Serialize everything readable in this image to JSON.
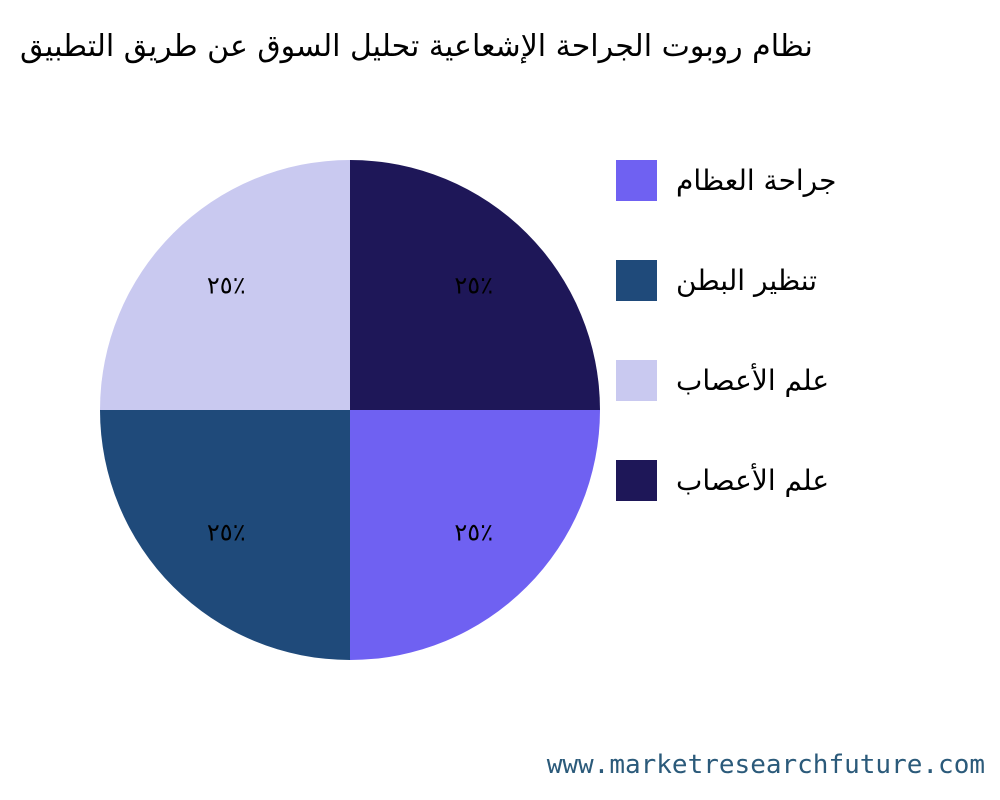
{
  "chart_data": {
    "type": "pie",
    "title": "نظام روبوت الجراحة الإشعاعية تحليل السوق عن طريق التطبيق",
    "categories": [
      "جراحة العظام",
      "تنظير البطن",
      "علم الأعصاب",
      "علم الأعصاب"
    ],
    "values": [
      25,
      25,
      25,
      25
    ],
    "value_labels": [
      "٢٥٪",
      "٢٥٪",
      "٢٥٪",
      "٢٥٪"
    ],
    "colors": [
      "#6f61f2",
      "#1f4a7a",
      "#c9c9f0",
      "#1e1758"
    ],
    "source": "www.marketresearchfuture.com"
  }
}
